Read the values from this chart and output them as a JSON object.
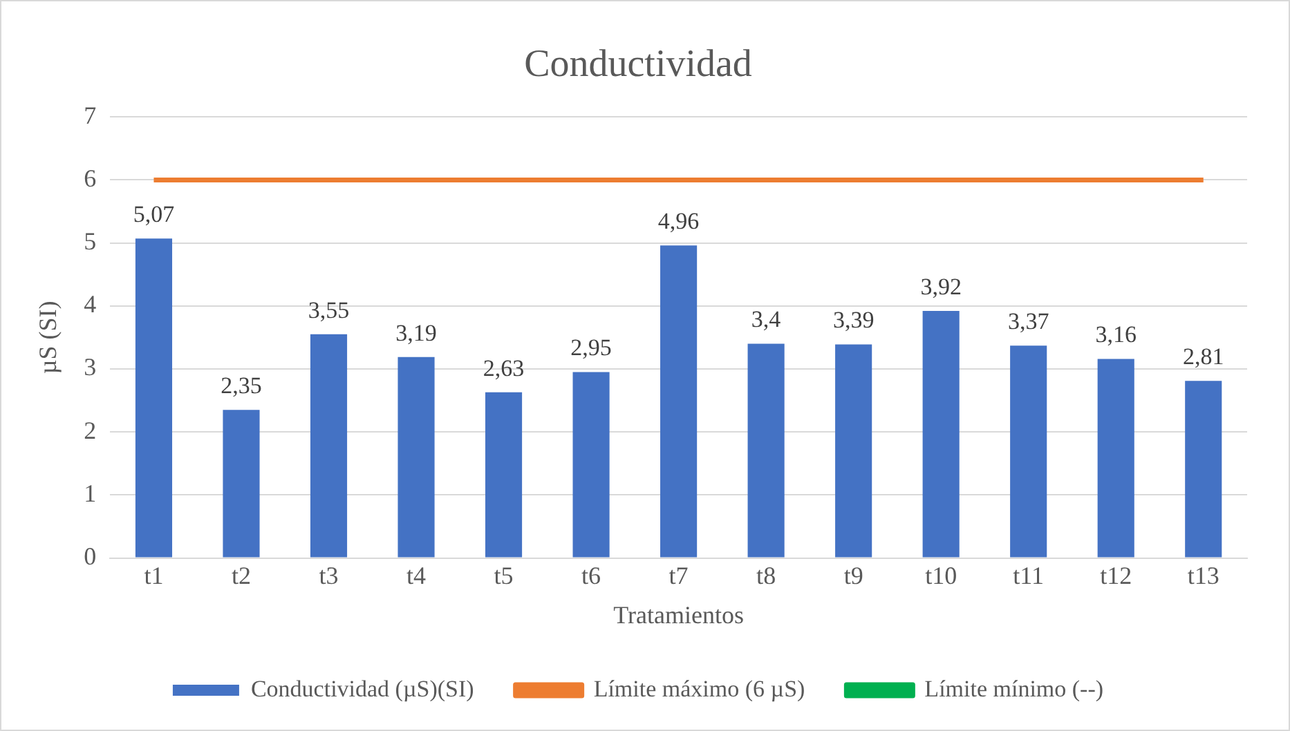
{
  "chart_data": {
    "type": "bar",
    "title": "Conductividad",
    "xlabel": "Tratamientos",
    "ylabel": "µS (SI)",
    "categories": [
      "t1",
      "t2",
      "t3",
      "t4",
      "t5",
      "t6",
      "t7",
      "t8",
      "t9",
      "t10",
      "t11",
      "t12",
      "t13"
    ],
    "series": [
      {
        "name": "Conductividad (µS)(SI)",
        "color": "#4472c4",
        "values": [
          5.07,
          2.35,
          3.55,
          3.19,
          2.63,
          2.95,
          4.96,
          3.4,
          3.39,
          3.92,
          3.37,
          3.16,
          2.81
        ],
        "value_labels": [
          "5,07",
          "2,35",
          "3,55",
          "3,19",
          "2,63",
          "2,95",
          "4,96",
          "3,4",
          "3,39",
          "3,92",
          "3,37",
          "3,16",
          "2,81"
        ]
      },
      {
        "name": "Límite máximo (6 µS)",
        "type": "line",
        "color": "#ed7d31",
        "values": [
          6,
          6,
          6,
          6,
          6,
          6,
          6,
          6,
          6,
          6,
          6,
          6,
          6
        ]
      },
      {
        "name": "Límite mínimo (--)",
        "type": "line",
        "color": "#00b050",
        "values": [
          null,
          null,
          null,
          null,
          null,
          null,
          null,
          null,
          null,
          null,
          null,
          null,
          null
        ]
      }
    ],
    "ylim": [
      0,
      7
    ],
    "yticks": [
      0,
      1,
      2,
      3,
      4,
      5,
      6,
      7
    ],
    "grid": "y",
    "legend": "bottom",
    "marker": "none",
    "line_style": "solid"
  }
}
